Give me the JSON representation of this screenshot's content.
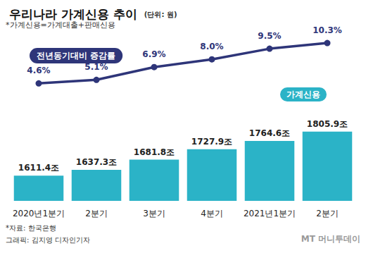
{
  "chart_data": {
    "type": "bar",
    "title": "우리나라 가계신용 추이",
    "subtitle": "*가계신용=가계대출+판매신용",
    "annotations": [
      "(단위: 원)",
      "*자료: 한국은행",
      "그래픽: 김지영 디자인기자",
      "MT 머니투데이"
    ],
    "categories": [
      "2020년1분기",
      "2분기",
      "3분기",
      "4분기",
      "2021년1분기",
      "2분기"
    ],
    "series": [
      {
        "name": "가계신용",
        "type": "bar",
        "color": "#2bb3c7",
        "values": [
          1611.4,
          1637.3,
          1681.8,
          1727.9,
          1764.6,
          1805.9
        ],
        "value_labels": [
          "1611.4조",
          "1637.3조",
          "1681.8조",
          "1727.9조",
          "1764.6조",
          "1805.9조"
        ]
      },
      {
        "name": "전년동기대비 증감률",
        "type": "line",
        "axis": "y2",
        "color": "#2e3579",
        "marker": "circle",
        "values": [
          4.6,
          5.1,
          6.9,
          8.0,
          9.5,
          10.3
        ],
        "value_labels": [
          "4.6%",
          "5.1%",
          "6.9%",
          "8.0%",
          "9.5%",
          "10.3%"
        ]
      }
    ],
    "ylim": [
      1500,
      2250
    ],
    "yticks": [
      1500,
      1750,
      2000,
      2250
    ],
    "y2lim": [
      -12,
      12
    ],
    "y2ticks": [
      -12,
      -6,
      0,
      6,
      12
    ],
    "grid": false,
    "data_labels": true,
    "tick_labels": "x"
  }
}
